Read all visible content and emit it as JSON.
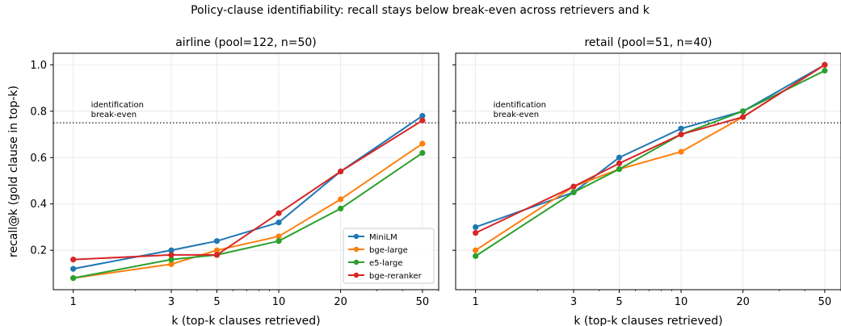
{
  "figure": {
    "suptitle": "Policy-clause identifiability: recall stays below break-even across retrievers and k"
  },
  "colors": {
    "MiniLM": "#1f77b4",
    "bge-large": "#ff7f0e",
    "e5-large": "#2ca02c",
    "bge-reranker": "#d62728",
    "threshold": "#000000",
    "grid": "#e6e6e6"
  },
  "chart_data": [
    {
      "type": "line",
      "title": "airline (pool=122, n=50)",
      "xlabel": "k (top-k clauses retrieved)",
      "ylabel": "recall@k (gold clause in top-k)",
      "xscale": "log",
      "x": [
        1,
        3,
        5,
        10,
        20,
        50
      ],
      "xticklabels": [
        "1",
        "3",
        "5",
        "10",
        "20",
        "50"
      ],
      "ylim": [
        0.03,
        1.05
      ],
      "yticks": [
        0.2,
        0.4,
        0.6,
        0.8,
        1.0
      ],
      "yticklabels": [
        "0.2",
        "0.4",
        "0.6",
        "0.8",
        "1.0"
      ],
      "grid": true,
      "threshold": {
        "value": 0.75,
        "label_line1": "identification",
        "label_line2": "break-even"
      },
      "legend": {
        "placement": "lower right",
        "entries": [
          "MiniLM",
          "bge-large",
          "e5-large",
          "bge-reranker"
        ]
      },
      "series": [
        {
          "name": "MiniLM",
          "values": [
            0.12,
            0.2,
            0.24,
            0.32,
            0.54,
            0.78
          ]
        },
        {
          "name": "bge-large",
          "values": [
            0.08,
            0.14,
            0.2,
            0.26,
            0.42,
            0.66
          ]
        },
        {
          "name": "e5-large",
          "values": [
            0.08,
            0.16,
            0.18,
            0.24,
            0.38,
            0.62
          ]
        },
        {
          "name": "bge-reranker",
          "values": [
            0.16,
            0.18,
            0.18,
            0.36,
            0.54,
            0.76
          ]
        }
      ]
    },
    {
      "type": "line",
      "title": "retail (pool=51, n=40)",
      "xlabel": "k (top-k clauses retrieved)",
      "ylabel": "",
      "xscale": "log",
      "x": [
        1,
        3,
        5,
        10,
        20,
        50
      ],
      "xticklabels": [
        "1",
        "3",
        "5",
        "10",
        "20",
        "50"
      ],
      "ylim": [
        0.03,
        1.05
      ],
      "yticks": [
        0.2,
        0.4,
        0.6,
        0.8,
        1.0
      ],
      "yticklabels": [],
      "grid": true,
      "threshold": {
        "value": 0.75,
        "label_line1": "identification",
        "label_line2": "break-even"
      },
      "series": [
        {
          "name": "MiniLM",
          "values": [
            0.3,
            0.45,
            0.6,
            0.725,
            0.8,
            1.0
          ]
        },
        {
          "name": "bge-large",
          "values": [
            0.2,
            0.475,
            0.55,
            0.625,
            0.775,
            1.0
          ]
        },
        {
          "name": "e5-large",
          "values": [
            0.175,
            0.45,
            0.55,
            0.7,
            0.8,
            0.975
          ]
        },
        {
          "name": "bge-reranker",
          "values": [
            0.275,
            0.475,
            0.575,
            0.7,
            0.775,
            1.0
          ]
        }
      ]
    }
  ]
}
